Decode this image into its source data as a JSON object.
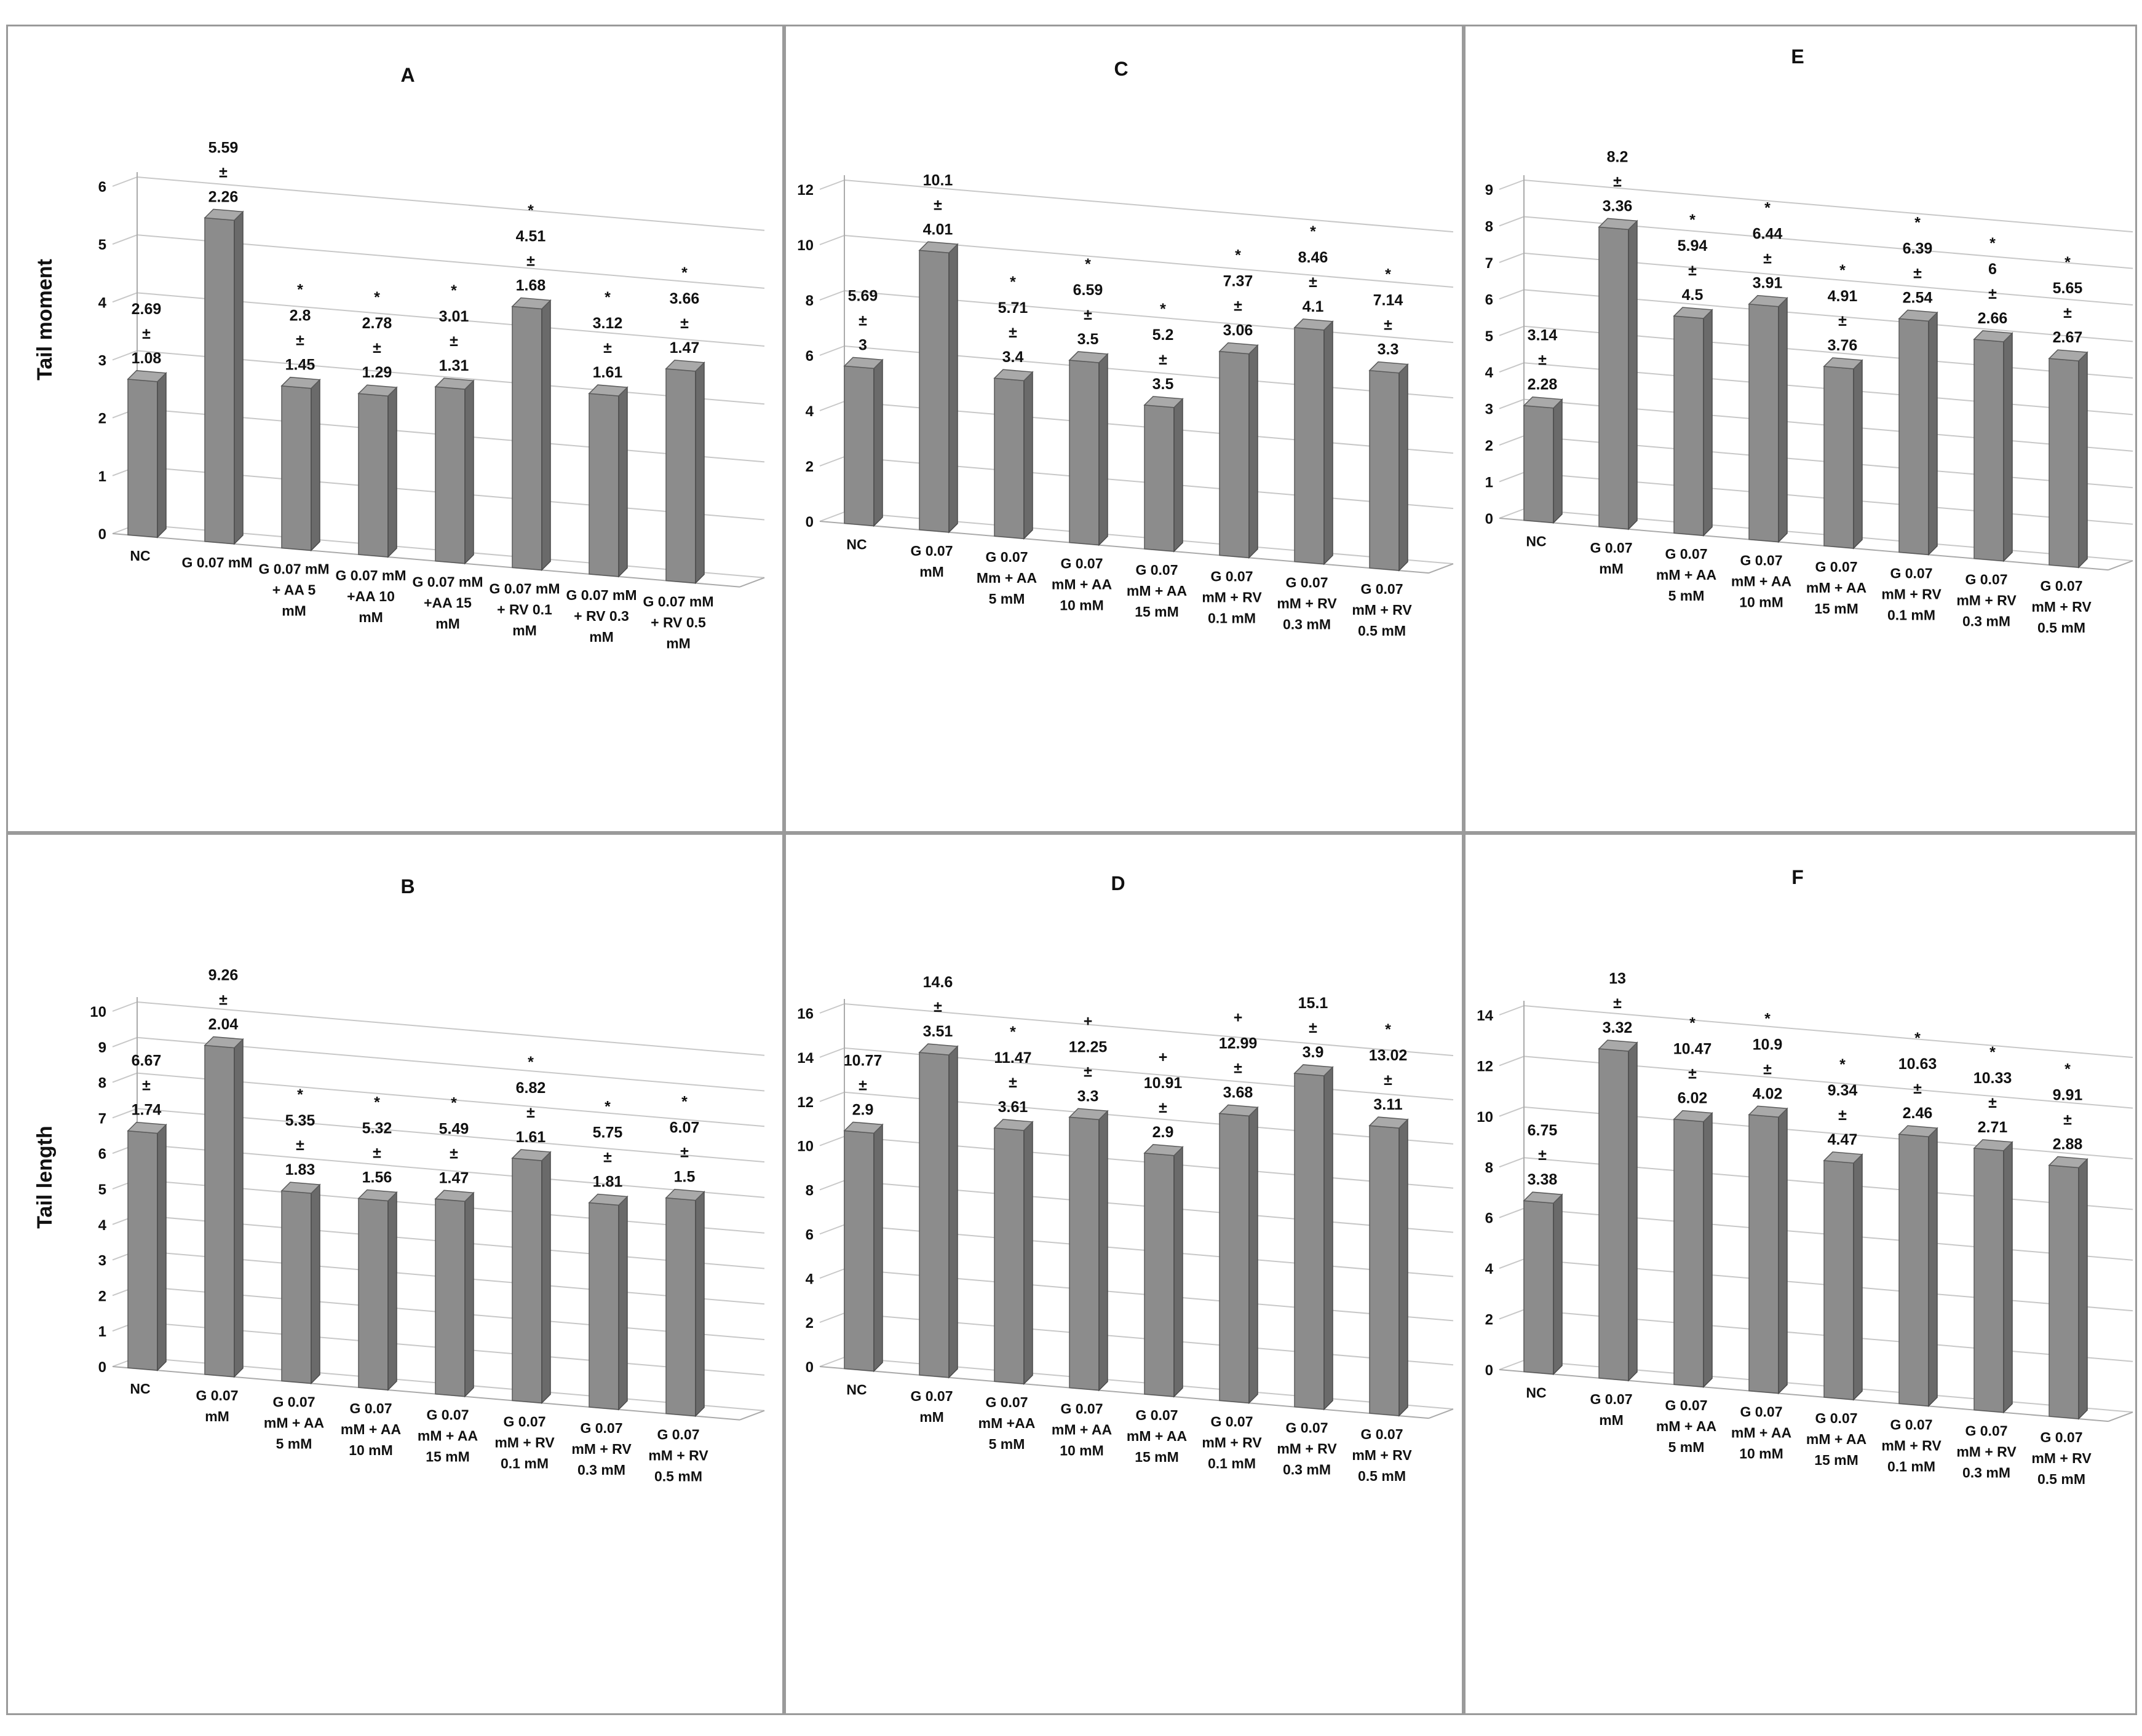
{
  "figure": {
    "ylabels": {
      "top": "Tail moment",
      "bottom": "Tail length"
    }
  },
  "chart_data": [
    {
      "id": "A",
      "type": "bar",
      "title": "A",
      "ylabel": "Tail moment",
      "ylim": [
        0,
        6
      ],
      "yticks": [
        "0",
        "1",
        "2",
        "3",
        "4",
        "5",
        "6"
      ],
      "categories": [
        [
          "NC"
        ],
        [
          "G 0.07 mM"
        ],
        [
          "G 0.07 mM",
          "+ AA 5",
          "mM"
        ],
        [
          "G 0.07 mM",
          "+AA 10",
          "mM"
        ],
        [
          "G 0.07 mM",
          "+AA 15",
          "mM"
        ],
        [
          "G 0.07 mM",
          "+ RV 0.1",
          "mM"
        ],
        [
          "G 0.07 mM",
          "+ RV 0.3",
          "mM"
        ],
        [
          "G 0.07 mM",
          "+ RV 0.5",
          "mM"
        ]
      ],
      "values": [
        2.69,
        5.59,
        2.8,
        2.78,
        3.01,
        4.51,
        3.12,
        3.66
      ],
      "errors": [
        1.08,
        2.26,
        1.45,
        1.29,
        1.31,
        1.68,
        1.61,
        1.47
      ],
      "value_labels": [
        "2.69",
        "5.59",
        "2.8",
        "2.78",
        "3.01",
        "4.51",
        "3.12",
        "3.66"
      ],
      "error_labels": [
        "1.08",
        "2.26",
        "1.45",
        "1.29",
        "1.31",
        "1.68",
        "1.61",
        "1.47"
      ],
      "marks": [
        "",
        "",
        "*",
        "*",
        "*",
        "*",
        "*",
        "*"
      ]
    },
    {
      "id": "C",
      "type": "bar",
      "title": "C",
      "ylabel": "",
      "ylim": [
        0,
        12
      ],
      "yticks": [
        "0",
        "2",
        "4",
        "6",
        "8",
        "10",
        "12"
      ],
      "categories": [
        [
          "NC"
        ],
        [
          "G 0.07",
          "mM"
        ],
        [
          "G 0.07",
          "Mm + AA",
          "5 mM"
        ],
        [
          "G 0.07",
          "mM + AA",
          "10 mM"
        ],
        [
          "G 0.07",
          "mM + AA",
          "15 mM"
        ],
        [
          "G 0.07",
          "mM + RV",
          "0.1 mM"
        ],
        [
          "G 0.07",
          "mM + RV",
          "0.3 mM"
        ],
        [
          "G 0.07",
          "mM + RV",
          "0.5 mM"
        ]
      ],
      "values": [
        5.69,
        10.1,
        5.71,
        6.59,
        5.2,
        7.37,
        8.46,
        7.14
      ],
      "errors": [
        3,
        4.01,
        3.4,
        3.5,
        3.5,
        3.06,
        4.1,
        3.3
      ],
      "value_labels": [
        "5.69",
        "10.1",
        "5.71",
        "6.59",
        "5.2",
        "7.37",
        "8.46",
        "7.14"
      ],
      "error_labels": [
        "3",
        "4.01",
        "3.4",
        "3.5",
        "3.5",
        "3.06",
        "4.1",
        "3.3"
      ],
      "marks": [
        "",
        "",
        "*",
        "*",
        "*",
        "*",
        "*",
        "*"
      ]
    },
    {
      "id": "E",
      "type": "bar",
      "title": "E",
      "ylabel": "",
      "ylim": [
        0,
        9
      ],
      "yticks": [
        "0",
        "1",
        "2",
        "3",
        "4",
        "5",
        "6",
        "7",
        "8",
        "9"
      ],
      "categories": [
        [
          "NC"
        ],
        [
          "G 0.07",
          "mM"
        ],
        [
          "G 0.07",
          "mM + AA",
          "5 mM"
        ],
        [
          "G 0.07",
          "mM + AA",
          "10 mM"
        ],
        [
          "G 0.07",
          "mM + AA",
          "15 mM"
        ],
        [
          "G 0.07",
          "mM + RV",
          "0.1 mM"
        ],
        [
          "G 0.07",
          "mM + RV",
          "0.3 mM"
        ],
        [
          "G 0.07",
          "mM + RV",
          "0.5 mM"
        ]
      ],
      "values": [
        3.14,
        8.2,
        5.94,
        6.44,
        4.91,
        6.39,
        6,
        5.65
      ],
      "errors": [
        2.28,
        3.36,
        4.5,
        3.91,
        3.76,
        2.54,
        2.66,
        2.67
      ],
      "value_labels": [
        "3.14",
        "8.2",
        "5.94",
        "6.44",
        "4.91",
        "6.39",
        "6",
        "5.65"
      ],
      "error_labels": [
        "2.28",
        "3.36",
        "4.5",
        "3.91",
        "3.76",
        "2.54",
        "2.66",
        "2.67"
      ],
      "marks": [
        "",
        "",
        "*",
        "*",
        "*",
        "*",
        "*",
        "*"
      ]
    },
    {
      "id": "B",
      "type": "bar",
      "title": "B",
      "ylabel": "Tail length",
      "ylim": [
        0,
        10
      ],
      "yticks": [
        "0",
        "1",
        "2",
        "3",
        "4",
        "5",
        "6",
        "7",
        "8",
        "9",
        "10"
      ],
      "categories": [
        [
          "NC"
        ],
        [
          "G 0.07",
          "mM"
        ],
        [
          "G 0.07",
          "mM + AA",
          "5 mM"
        ],
        [
          "G 0.07",
          "mM + AA",
          "10 mM"
        ],
        [
          "G 0.07",
          "mM + AA",
          "15 mM"
        ],
        [
          "G 0.07",
          "mM + RV",
          "0.1 mM"
        ],
        [
          "G 0.07",
          "mM + RV",
          "0.3 mM"
        ],
        [
          "G 0.07",
          "mM + RV",
          "0.5 mM"
        ]
      ],
      "values": [
        6.67,
        9.26,
        5.35,
        5.32,
        5.49,
        6.82,
        5.75,
        6.07
      ],
      "errors": [
        1.74,
        2.04,
        1.83,
        1.56,
        1.47,
        1.61,
        1.81,
        1.5
      ],
      "value_labels": [
        "6.67",
        "9.26",
        "5.35",
        "5.32",
        "5.49",
        "6.82",
        "5.75",
        "6.07"
      ],
      "error_labels": [
        "1.74",
        "2.04",
        "1.83",
        "1.56",
        "1.47",
        "1.61",
        "1.81",
        "1.5"
      ],
      "marks": [
        "",
        "",
        "*",
        "*",
        "*",
        "*",
        "*",
        "*"
      ]
    },
    {
      "id": "D",
      "type": "bar",
      "title": "D",
      "ylabel": "",
      "ylim": [
        0,
        16
      ],
      "yticks": [
        "0",
        "2",
        "4",
        "6",
        "8",
        "10",
        "12",
        "14",
        "16"
      ],
      "categories": [
        [
          "NC"
        ],
        [
          "G 0.07",
          "mM"
        ],
        [
          "G 0.07",
          "mM +AA",
          "5 mM"
        ],
        [
          "G 0.07",
          "mM + AA",
          "10 mM"
        ],
        [
          "G 0.07",
          "mM + AA",
          "15 mM"
        ],
        [
          "G 0.07",
          "mM + RV",
          "0.1 mM"
        ],
        [
          "G 0.07",
          "mM + RV",
          "0.3 mM"
        ],
        [
          "G 0.07",
          "mM + RV",
          "0.5 mM"
        ]
      ],
      "values": [
        10.77,
        14.6,
        11.47,
        12.25,
        10.91,
        12.99,
        15.1,
        13.02
      ],
      "errors": [
        2.9,
        3.51,
        3.61,
        3.3,
        2.9,
        3.68,
        3.9,
        3.11
      ],
      "value_labels": [
        "10.77",
        "14.6",
        "11.47",
        "12.25",
        "10.91",
        "12.99",
        "15.1",
        "13.02"
      ],
      "error_labels": [
        "2.9",
        "3.51",
        "3.61",
        "3.3",
        "2.9",
        "3.68",
        "3.9",
        "3.11"
      ],
      "marks": [
        "",
        "",
        "*",
        "+",
        "+",
        "+",
        "",
        "*"
      ]
    },
    {
      "id": "F",
      "type": "bar",
      "title": "F",
      "ylabel": "",
      "ylim": [
        0,
        14
      ],
      "yticks": [
        "0",
        "2",
        "4",
        "6",
        "8",
        "10",
        "12",
        "14"
      ],
      "categories": [
        [
          "NC"
        ],
        [
          "G 0.07",
          "mM"
        ],
        [
          "G 0.07",
          "mM + AA",
          "5 mM"
        ],
        [
          "G 0.07",
          "mM + AA",
          "10 mM"
        ],
        [
          "G 0.07",
          "mM + AA",
          "15 mM"
        ],
        [
          "G 0.07",
          "mM + RV",
          "0.1 mM"
        ],
        [
          "G 0.07",
          "mM + RV",
          "0.3 mM"
        ],
        [
          "G 0.07",
          "mM + RV",
          "0.5 mM"
        ]
      ],
      "values": [
        6.75,
        13,
        10.47,
        10.9,
        9.34,
        10.63,
        10.33,
        9.91
      ],
      "errors": [
        3.38,
        3.32,
        6.02,
        4.02,
        4.47,
        2.46,
        2.71,
        2.88
      ],
      "value_labels": [
        "6.75",
        "13",
        "10.47",
        "10.9",
        "9.34",
        "10.63",
        "10.33",
        "9.91"
      ],
      "error_labels": [
        "3.38",
        "3.32",
        "6.02",
        "4.02",
        "4.47",
        "2.46",
        "2.71",
        "2.88"
      ],
      "marks": [
        "",
        "",
        "*",
        "*",
        "*",
        "*",
        "*",
        "*"
      ]
    }
  ]
}
